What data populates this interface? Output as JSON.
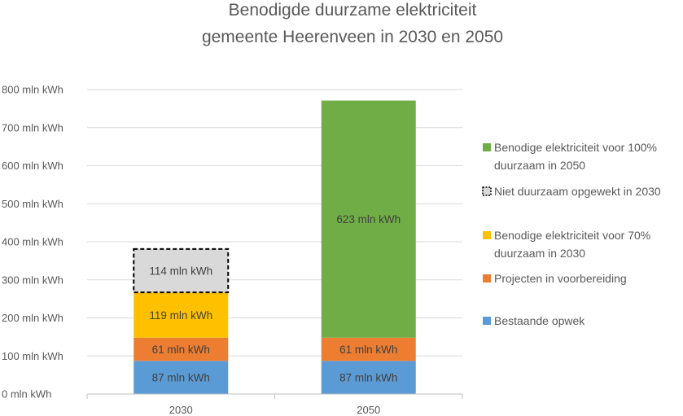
{
  "chart_data": {
    "type": "bar",
    "stacked": true,
    "title_lines": [
      "Benodigde duurzame elektriciteit",
      "gemeente Heerenveen in 2030 en 2050"
    ],
    "categories": [
      "2030",
      "2050"
    ],
    "ylim": [
      0,
      800
    ],
    "yticks": [
      0,
      100,
      200,
      300,
      400,
      500,
      600,
      700,
      800
    ],
    "ytick_labels": [
      "0 mln kWh",
      "100 mln kWh",
      "200 mln kWh",
      "300 mln kWh",
      "400 mln kWh",
      "500 mln kWh",
      "600 mln kWh",
      "700 mln kWh",
      "800 mln kWh"
    ],
    "grid": true,
    "legend_position": "right",
    "series": [
      {
        "name": "Bestaande opwek",
        "color": "#5B9BD5",
        "values": [
          87,
          87
        ],
        "labels": [
          "87 mln kWh",
          "87 mln kWh"
        ]
      },
      {
        "name": "Projecten in voorbereiding",
        "color": "#ED7D31",
        "values": [
          61,
          61
        ],
        "labels": [
          "61 mln kWh",
          "61 mln kWh"
        ]
      },
      {
        "name": "Benodige elektriciteit voor 70% duurzaam in 2030",
        "color": "#FFC000",
        "values": [
          119,
          0
        ],
        "labels": [
          "119 mln kWh",
          ""
        ]
      },
      {
        "name": "Niet duurzaam opgewekt in 2030",
        "color": "#D9D9D9",
        "border": "dashed",
        "values": [
          114,
          0
        ],
        "labels": [
          "114 mln kWh",
          ""
        ]
      },
      {
        "name": "Benodige elektriciteit voor 100% duurzaam in 2050",
        "color": "#70AD47",
        "values": [
          0,
          623
        ],
        "labels": [
          "",
          "623 mln kWh"
        ]
      }
    ],
    "legend": [
      {
        "lines": [
          "Benodige elektriciteit voor 100%",
          "duurzaam in 2050"
        ],
        "color": "#70AD47",
        "style": "solid"
      },
      {
        "lines": [
          "Niet duurzaam opgewekt in 2030"
        ],
        "color": "#D9D9D9",
        "style": "dashed"
      },
      {
        "lines": [
          "Benodige elektriciteit voor 70%",
          "duurzaam in 2030"
        ],
        "color": "#FFC000",
        "style": "solid"
      },
      {
        "lines": [
          "Projecten in voorbereiding"
        ],
        "color": "#ED7D31",
        "style": "solid"
      },
      {
        "lines": [
          "Bestaande opwek"
        ],
        "color": "#5B9BD5",
        "style": "solid"
      }
    ]
  }
}
